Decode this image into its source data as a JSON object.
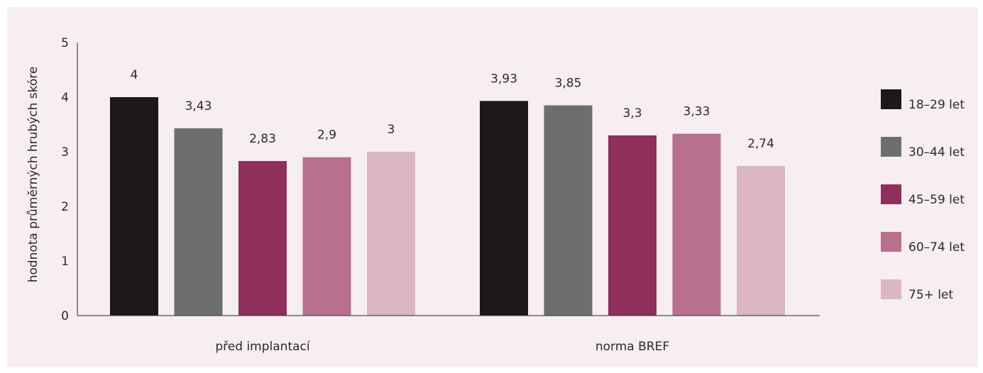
{
  "chart_data": {
    "type": "bar",
    "ylabel": "hodnota průměrných hrubých skóre",
    "xlabel": "",
    "ylim": [
      0,
      5
    ],
    "yticks": [
      0,
      1,
      2,
      3,
      4,
      5
    ],
    "grid": false,
    "legend_position": "right",
    "categories": [
      "před implantací",
      "norma BREF"
    ],
    "series": [
      {
        "name": "18–29 let",
        "color": "#1c181c",
        "values": [
          4,
          3.93
        ],
        "labels": [
          "4",
          "3,93"
        ]
      },
      {
        "name": "30–44 let",
        "color": "#6e6e70",
        "values": [
          3.43,
          3.85
        ],
        "labels": [
          "3,43",
          "3,85"
        ]
      },
      {
        "name": "45–59 let",
        "color": "#8e2f5c",
        "values": [
          2.83,
          3.3
        ],
        "labels": [
          "2,83",
          "3,3"
        ]
      },
      {
        "name": "60–74 let",
        "color": "#b7718d",
        "values": [
          2.9,
          3.33
        ],
        "labels": [
          "2,9",
          "3,33"
        ]
      },
      {
        "name": "75+ let",
        "color": "#dbb7c6",
        "values": [
          3,
          2.74
        ],
        "labels": [
          "3",
          "2,74"
        ]
      }
    ]
  }
}
